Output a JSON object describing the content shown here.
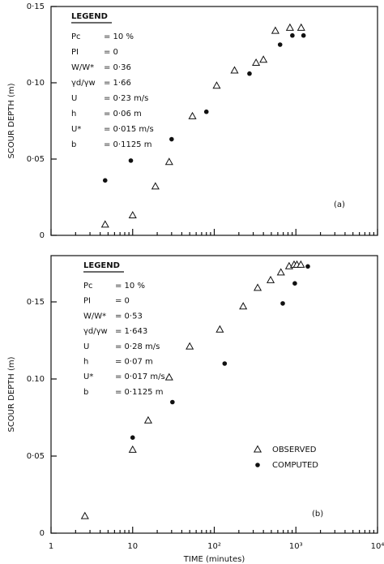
{
  "chart_data": [
    {
      "type": "scatter",
      "panel_label": "(a)",
      "y_label": "SCOUR DEPTH (m)",
      "x_scale": "log",
      "xlim": [
        1,
        10000
      ],
      "xticks": [
        1,
        10,
        100,
        1000,
        10000
      ],
      "show_xtick_labels": false,
      "ylim": [
        0,
        0.15
      ],
      "yticks": [
        {
          "value": 0,
          "label": "0"
        },
        {
          "value": 0.05,
          "label": "0·05"
        },
        {
          "value": 0.1,
          "label": "0·10"
        },
        {
          "value": 0.15,
          "label": "0·15"
        }
      ],
      "legend_box": {
        "title": "LEGEND",
        "rows": [
          [
            "Pc",
            "= 10 %"
          ],
          [
            "PI",
            "= 0"
          ],
          [
            "W/W*",
            "= 0·36"
          ],
          [
            "γd/γw",
            "= 1·66"
          ],
          [
            "U",
            "= 0·23 m/s"
          ],
          [
            "h",
            "= 0·06 m"
          ],
          [
            "U*",
            "= 0·015 m/s"
          ],
          [
            "b",
            "= 0·1125 m"
          ]
        ]
      },
      "series": [
        {
          "name": "OBSERVED",
          "marker": "triangle",
          "color": "#111111",
          "x": [
            4.6,
            10,
            19,
            28,
            54,
            107,
            177,
            325,
            400,
            560,
            845,
            1160
          ],
          "values": [
            0.007,
            0.013,
            0.032,
            0.048,
            0.078,
            0.098,
            0.108,
            0.113,
            0.115,
            0.134,
            0.136,
            0.136
          ]
        },
        {
          "name": "COMPUTED",
          "marker": "circle",
          "color": "#111111",
          "x": [
            4.6,
            9.5,
            30,
            80,
            270,
            640,
            905,
            1240
          ],
          "values": [
            0.036,
            0.049,
            0.063,
            0.081,
            0.106,
            0.125,
            0.131,
            0.131
          ]
        }
      ]
    },
    {
      "type": "scatter",
      "panel_label": "(b)",
      "y_label": "SCOUR DEPTH (m)",
      "x_label": "TIME (minutes)",
      "x_scale": "log",
      "xlim": [
        1,
        10000
      ],
      "xticks": [
        1,
        10,
        {
          "value": 100,
          "label": "10²"
        },
        {
          "value": 1000,
          "label": "10³"
        },
        {
          "value": 10000,
          "label": "10⁴"
        }
      ],
      "show_xtick_labels": true,
      "ylim": [
        0,
        0.18
      ],
      "yticks": [
        {
          "value": 0,
          "label": "0"
        },
        {
          "value": 0.05,
          "label": "0·05"
        },
        {
          "value": 0.1,
          "label": "0.10"
        },
        {
          "value": 0.15,
          "label": "0·15"
        }
      ],
      "legend_box": {
        "title": "LEGEND",
        "rows": [
          [
            "Pc",
            "= 10 %"
          ],
          [
            "PI",
            "= 0"
          ],
          [
            "W/W*",
            "= 0·53"
          ],
          [
            "γd/γw",
            "= 1·643"
          ],
          [
            "U",
            "= 0·28 m/s"
          ],
          [
            "h",
            "= 0·07 m"
          ],
          [
            "U*",
            "= 0·017 m/s"
          ],
          [
            "b",
            "= 0·1125 m"
          ]
        ]
      },
      "series": [
        {
          "name": "OBSERVED",
          "marker": "triangle",
          "color": "#111111",
          "x": [
            2.6,
            10,
            15.5,
            28,
            50,
            117,
            226,
            340,
            490,
            655,
            826,
            950,
            1030,
            1150
          ],
          "values": [
            0.011,
            0.054,
            0.073,
            0.101,
            0.121,
            0.132,
            0.147,
            0.159,
            0.164,
            0.169,
            0.173,
            0.174,
            0.174,
            0.174
          ]
        },
        {
          "name": "COMPUTED",
          "marker": "circle",
          "color": "#111111",
          "x": [
            10,
            30.7,
            134,
            690,
            970,
            1400
          ],
          "values": [
            0.062,
            0.085,
            0.11,
            0.149,
            0.162,
            0.173
          ]
        }
      ]
    }
  ]
}
